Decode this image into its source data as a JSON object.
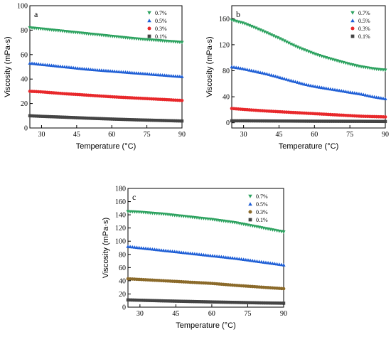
{
  "chart_data": [
    {
      "type": "scatter",
      "panel_label": "a",
      "xlabel": "Temperature (°C)",
      "ylabel": "Viscosity (mPa·s)",
      "xlim": [
        25,
        90
      ],
      "ylim": [
        0,
        100
      ],
      "xticks": [
        30,
        45,
        60,
        75,
        90
      ],
      "yticks": [
        0,
        20,
        40,
        60,
        80,
        100
      ],
      "legend_position": "top-right",
      "series": [
        {
          "name": "0.7%",
          "marker": "triangle-down",
          "color": "#2ca25f",
          "x": [
            25,
            30,
            40,
            50,
            60,
            70,
            80,
            90
          ],
          "values": [
            82,
            81,
            79,
            77,
            75,
            73,
            71.5,
            70
          ]
        },
        {
          "name": "0.5%",
          "marker": "triangle-up",
          "color": "#1f5fd6",
          "x": [
            25,
            30,
            40,
            50,
            60,
            70,
            80,
            90
          ],
          "values": [
            53,
            52,
            50,
            48,
            46.5,
            45,
            43.5,
            42
          ]
        },
        {
          "name": "0.3%",
          "marker": "circle",
          "color": "#e8282b",
          "x": [
            25,
            30,
            40,
            50,
            60,
            70,
            80,
            90
          ],
          "values": [
            30,
            29.5,
            28,
            26.8,
            25.5,
            24.5,
            23.5,
            22.5
          ]
        },
        {
          "name": "0.1%",
          "marker": "square",
          "color": "#444444",
          "x": [
            25,
            30,
            40,
            50,
            60,
            70,
            80,
            90
          ],
          "values": [
            10,
            9.5,
            8.8,
            8,
            7.3,
            6.7,
            6.2,
            5.7
          ]
        }
      ]
    },
    {
      "type": "scatter",
      "panel_label": "b",
      "xlabel": "Temperature (°C)",
      "ylabel": "Viscosity (mPa·s)",
      "xlim": [
        25,
        90
      ],
      "ylim": [
        -8,
        180
      ],
      "xticks": [
        30,
        45,
        60,
        75,
        90
      ],
      "yticks": [
        0,
        40,
        80,
        120,
        160
      ],
      "legend_position": "top-right",
      "series": [
        {
          "name": "0.7%",
          "marker": "triangle-down",
          "color": "#2ca25f",
          "x": [
            25,
            30,
            35,
            40,
            45,
            50,
            55,
            60,
            65,
            70,
            75,
            80,
            85,
            90
          ],
          "values": [
            158,
            153,
            146,
            138,
            130,
            121,
            113,
            106,
            100,
            95,
            90,
            86,
            83,
            81
          ]
        },
        {
          "name": "0.5%",
          "marker": "triangle-up",
          "color": "#1f5fd6",
          "x": [
            25,
            30,
            35,
            40,
            45,
            50,
            55,
            60,
            65,
            70,
            75,
            80,
            85,
            90
          ],
          "values": [
            86,
            83,
            79,
            75,
            70,
            65,
            60,
            56,
            53,
            50,
            47,
            44,
            40,
            37
          ]
        },
        {
          "name": "0.3%",
          "marker": "circle",
          "color": "#e8282b",
          "x": [
            25,
            30,
            40,
            50,
            60,
            70,
            80,
            90
          ],
          "values": [
            22,
            20.5,
            18,
            16,
            14,
            12,
            10,
            9
          ]
        },
        {
          "name": "0.1%",
          "marker": "square",
          "color": "#444444",
          "x": [
            25,
            30,
            40,
            50,
            60,
            70,
            80,
            90
          ],
          "values": [
            3,
            3,
            2.8,
            2.6,
            2.4,
            2.3,
            2.2,
            2
          ]
        }
      ]
    },
    {
      "type": "scatter",
      "panel_label": "c",
      "xlabel": "Temperature (°C)",
      "ylabel": "Viscosity (mPa·s)",
      "xlim": [
        25,
        90
      ],
      "ylim": [
        0,
        180
      ],
      "xticks": [
        30,
        45,
        60,
        75,
        90
      ],
      "yticks": [
        0,
        20,
        40,
        60,
        80,
        100,
        120,
        140,
        160,
        180
      ],
      "legend_position": "top-right",
      "series": [
        {
          "name": "0.7%",
          "marker": "triangle-down",
          "color": "#2ca25f",
          "x": [
            25,
            30,
            40,
            50,
            60,
            70,
            80,
            90
          ],
          "values": [
            145,
            144,
            141,
            137,
            133,
            128,
            121,
            114
          ]
        },
        {
          "name": "0.5%",
          "marker": "triangle-up",
          "color": "#1f5fd6",
          "x": [
            25,
            30,
            40,
            50,
            60,
            70,
            80,
            90
          ],
          "values": [
            92,
            90,
            86,
            82,
            78,
            74,
            69,
            64
          ]
        },
        {
          "name": "0.3%",
          "marker": "circle",
          "color": "#8b6a2a",
          "x": [
            25,
            30,
            40,
            50,
            60,
            70,
            80,
            90
          ],
          "values": [
            43,
            42,
            40,
            38,
            36,
            33,
            30.5,
            28
          ]
        },
        {
          "name": "0.1%",
          "marker": "square",
          "color": "#444444",
          "x": [
            25,
            30,
            40,
            50,
            60,
            70,
            80,
            90
          ],
          "values": [
            11,
            10.5,
            9.5,
            8.7,
            7.9,
            7.2,
            6.5,
            6
          ]
        }
      ]
    }
  ]
}
